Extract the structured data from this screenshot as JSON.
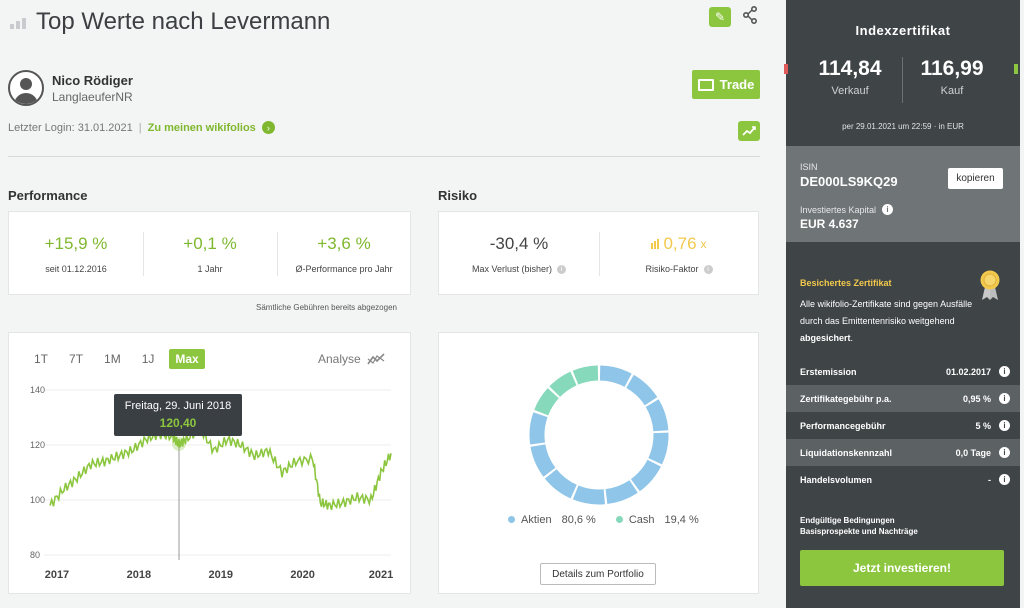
{
  "header": {
    "title": "Top Werte nach Levermann"
  },
  "author": {
    "name": "Nico Rödiger",
    "nickname": "LanglaeuferNR",
    "trade_label": "Trade",
    "last_login": "Letzter Login: 31.01.2021",
    "separator": "|",
    "wikifolios_link": "Zu meinen wikifolios"
  },
  "performance": {
    "heading": "Performance",
    "items": [
      {
        "value": "+15,9 %",
        "label": "seit 01.12.2016"
      },
      {
        "value": "+0,1 %",
        "label": "1 Jahr"
      },
      {
        "value": "+3,6 %",
        "label": "Ø-Performance pro Jahr"
      }
    ],
    "fees_note": "Sämtliche Gebühren bereits abgezogen"
  },
  "risk": {
    "heading": "Risiko",
    "max_loss": {
      "value": "-30,4 %",
      "label": "Max Verlust (bisher)"
    },
    "factor": {
      "value": "0,76",
      "unit": "x",
      "label": "Risiko-Faktor"
    }
  },
  "chart_tabs": [
    "1T",
    "7T",
    "1M",
    "1J",
    "Max"
  ],
  "chart_active_tab": "Max",
  "chart_analyse_label": "Analyse",
  "tooltip": {
    "date": "Freitag, 29. Juni 2018",
    "value": "120,40"
  },
  "chart_data": [
    {
      "type": "line",
      "title": "",
      "xlabel": "",
      "ylabel": "",
      "x_ticks": [
        "2017",
        "2018",
        "2019",
        "2020",
        "2021"
      ],
      "y_ticks": [
        80,
        100,
        120,
        140
      ],
      "ylim": [
        80,
        140
      ],
      "grid": false,
      "series": [
        {
          "x": [
            "2016-12-01",
            "2017-02-01",
            "2017-04-01",
            "2017-06-01",
            "2017-08-01",
            "2017-10-01",
            "2017-12-01",
            "2018-02-01",
            "2018-04-01",
            "2018-06-01",
            "2018-06-29",
            "2018-08-01",
            "2018-10-01",
            "2018-12-01",
            "2019-02-01",
            "2019-04-01",
            "2019-06-01",
            "2019-08-01",
            "2019-10-01",
            "2019-12-01",
            "2020-02-15",
            "2020-03-20",
            "2020-05-01",
            "2020-07-01",
            "2020-09-01",
            "2020-11-01",
            "2020-12-15",
            "2021-01-29"
          ],
          "values": [
            98,
            104,
            108,
            113,
            114,
            116,
            118,
            122,
            124,
            123,
            120.4,
            122,
            126,
            118,
            122,
            120,
            116,
            118,
            110,
            114,
            115,
            99,
            98,
            99,
            101,
            100,
            110,
            117
          ]
        }
      ]
    },
    {
      "type": "pie",
      "categories": [
        "Aktien",
        "Cash"
      ],
      "values": [
        80.6,
        19.4
      ],
      "value_labels": [
        "80,6 %",
        "19,4 %"
      ],
      "colors": [
        "#8ec5e8",
        "#86d9bb"
      ]
    }
  ],
  "portfolio_button": "Details zum Portfolio",
  "certificate": {
    "title": "Indexzertifikat",
    "sell_price": "114,84",
    "sell_label": "Verkauf",
    "buy_price": "116,99",
    "buy_label": "Kauf",
    "date_line": "per 29.01.2021 um 22:59 · in EUR",
    "isin_label": "ISIN",
    "isin": "DE000LS9KQ29",
    "copy_label": "kopieren",
    "capital_label": "Investiertes Kapital",
    "capital_value": "EUR 4.637",
    "secured_title": "Besichertes Zertifikat",
    "secured_text_1": "Alle wikifolio-Zertifikate sind gegen Ausfälle durch das Emittentenrisiko weitgehend ",
    "secured_text_bold": "abgesichert",
    "secured_text_2": ".",
    "rows": [
      {
        "label": "Erstemission",
        "value": "01.02.2017"
      },
      {
        "label": "Zertifikategebühr p.a.",
        "value": "0,95 %"
      },
      {
        "label": "Performancegebühr",
        "value": "5 %"
      },
      {
        "label": "Liquidationskennzahl",
        "value": "0,0 Tage"
      },
      {
        "label": "Handelsvolumen",
        "value": "-"
      }
    ],
    "docs_line1": "Endgültige Bedingungen",
    "docs_line2": "Basisprospekte und Nachträge",
    "invest_label": "Jetzt investieren!"
  },
  "colors": {
    "accent": "#8cc63f",
    "panel": "#3f4447",
    "panel_light": "#6f7477",
    "risk_factor": "#f2c94c"
  }
}
